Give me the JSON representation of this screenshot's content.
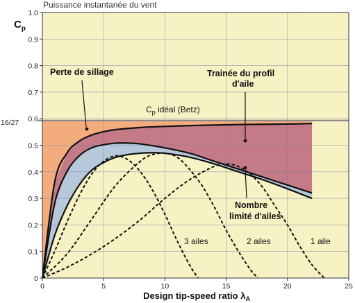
{
  "chart_data": {
    "type": "line",
    "title": "Puissance instantanée du vent",
    "xlabel": "Design tip-speed ratio λ",
    "xlabel_subscript": "A",
    "ylabel": "C",
    "ylabel_subscript": "p",
    "xlim": [
      0,
      25
    ],
    "ylim": [
      0,
      1.0
    ],
    "x_ticks": [
      "0",
      "5",
      "10",
      "15",
      "20",
      "25"
    ],
    "y_ticks": [
      "0",
      "0.1",
      "0.2",
      "0.3",
      "0.4",
      "0.5",
      "0.6",
      "0.7",
      "0.8",
      "0.9",
      "1.0"
    ],
    "grid": true,
    "betz": {
      "value": 0.593,
      "tick_label": "16/27",
      "label_main": "C",
      "label_sub": "p",
      "label_rest": " idéal (Betz)"
    },
    "series": [
      {
        "name": "Perte de sillage",
        "style": "solid",
        "x": [
          0,
          1,
          2,
          3,
          4,
          5,
          6,
          8,
          10,
          12,
          14,
          16,
          18,
          20,
          22
        ],
        "y": [
          0,
          0.36,
          0.47,
          0.515,
          0.538,
          0.551,
          0.559,
          0.567,
          0.571,
          0.574,
          0.576,
          0.578,
          0.579,
          0.58,
          0.582
        ]
      },
      {
        "name": "",
        "style": "solid",
        "x": [
          0,
          1,
          2,
          3,
          4,
          5,
          6,
          7,
          8,
          10,
          12,
          14,
          16,
          18,
          20,
          22
        ],
        "y": [
          0,
          0.28,
          0.4,
          0.46,
          0.49,
          0.502,
          0.508,
          0.508,
          0.505,
          0.49,
          0.47,
          0.44,
          0.41,
          0.38,
          0.35,
          0.32
        ]
      },
      {
        "name": "",
        "style": "solid",
        "x": [
          0,
          1,
          2,
          3,
          4,
          5,
          6,
          7,
          8,
          9,
          10,
          12,
          14,
          16,
          18,
          20,
          22
        ],
        "y": [
          0,
          0.16,
          0.27,
          0.35,
          0.405,
          0.435,
          0.455,
          0.465,
          0.47,
          0.472,
          0.47,
          0.455,
          0.43,
          0.4,
          0.37,
          0.336,
          0.3
        ]
      },
      {
        "name": "3 ailes",
        "style": "dashed",
        "x": [
          0,
          1,
          2,
          3,
          4,
          5,
          6,
          7,
          8,
          9,
          10,
          11,
          12,
          12.7
        ],
        "y": [
          0,
          0.1,
          0.21,
          0.31,
          0.39,
          0.44,
          0.46,
          0.445,
          0.4,
          0.33,
          0.24,
          0.14,
          0.05,
          0
        ]
      },
      {
        "name": "2 ailes",
        "style": "dashed",
        "x": [
          0,
          2,
          4,
          6,
          8,
          9,
          10,
          11,
          12,
          13,
          14,
          15,
          16,
          17,
          17.6
        ],
        "y": [
          0,
          0.09,
          0.22,
          0.35,
          0.44,
          0.465,
          0.47,
          0.455,
          0.41,
          0.35,
          0.27,
          0.18,
          0.1,
          0.03,
          0
        ]
      },
      {
        "name": "1 aile",
        "style": "dashed",
        "x": [
          0,
          2,
          4,
          6,
          8,
          10,
          12,
          14,
          15,
          16,
          17,
          18,
          19,
          20,
          21,
          22,
          23
        ],
        "y": [
          0,
          0.04,
          0.09,
          0.15,
          0.22,
          0.3,
          0.37,
          0.42,
          0.43,
          0.42,
          0.39,
          0.34,
          0.27,
          0.2,
          0.12,
          0.05,
          0
        ]
      }
    ],
    "fills": {
      "orange": "#f3ac7e",
      "mauve": "#c47a87",
      "blue": "#b7c8da",
      "background": "#f7f2c4",
      "betz_line": "#8a8a8a"
    },
    "annotations": [
      {
        "id": "wake",
        "text": [
          "Perte de sillage"
        ]
      },
      {
        "id": "drag",
        "text": [
          "Trainée du profil",
          "d'aile"
        ]
      },
      {
        "id": "blades",
        "text": [
          "Nombre",
          "limité d'ailes"
        ]
      }
    ]
  }
}
